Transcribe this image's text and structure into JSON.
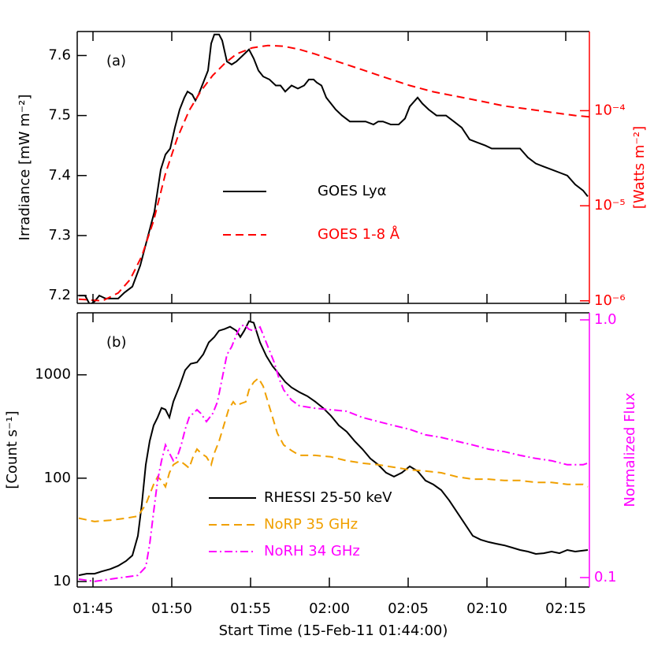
{
  "chart_data": [
    {
      "type": "line",
      "annotation": "(a)",
      "ylabel": "Irradiance [mW m⁻²]",
      "y2label": "[Watts m⁻²]",
      "xlim": [
        0,
        32.5
      ],
      "ylim": [
        7.187,
        7.64
      ],
      "yticks": [
        7.2,
        7.3,
        7.4,
        7.5,
        7.6
      ],
      "y2lim": [
        9.4e-07,
        0.00068
      ],
      "y2log": true,
      "y2color": "#ff0000",
      "y2ticks": [
        {
          "value": 1e-06,
          "label": "10⁻⁶"
        },
        {
          "value": 1e-05,
          "label": "10⁻⁵"
        },
        {
          "value": 0.0001,
          "label": "10⁻⁴"
        }
      ],
      "series": [
        {
          "name": "GOES Lyα",
          "color": "#000000",
          "dash": "solid",
          "x": [
            0.1,
            0.5,
            0.8,
            1.1,
            1.4,
            1.8,
            2.2,
            2.6,
            3.0,
            3.5,
            4.0,
            4.5,
            4.9,
            5.3,
            5.6,
            5.9,
            6.2,
            6.5,
            6.8,
            7.0,
            7.3,
            7.5,
            7.7,
            8.0,
            8.3,
            8.5,
            8.7,
            9.0,
            9.2,
            9.5,
            9.8,
            10.1,
            10.5,
            10.9,
            11.2,
            11.5,
            11.8,
            12.2,
            12.6,
            12.9,
            13.2,
            13.6,
            14.0,
            14.4,
            14.7,
            15.0,
            15.2,
            15.5,
            15.8,
            16.1,
            16.4,
            16.8,
            17.3,
            17.8,
            18.3,
            18.8,
            19.1,
            19.4,
            19.9,
            20.4,
            20.8,
            21.1,
            21.6,
            21.9,
            22.3,
            22.8,
            23.4,
            23.9,
            24.4,
            24.9,
            25.4,
            25.9,
            26.3,
            26.9,
            27.5,
            28.1,
            28.6,
            29.1,
            29.6,
            30.1,
            30.6,
            31.1,
            31.6,
            32.1,
            32.4
          ],
          "values": [
            7.2,
            7.2,
            7.185,
            7.19,
            7.2,
            7.195,
            7.195,
            7.195,
            7.205,
            7.215,
            7.25,
            7.3,
            7.34,
            7.41,
            7.435,
            7.445,
            7.48,
            7.51,
            7.53,
            7.54,
            7.535,
            7.525,
            7.535,
            7.555,
            7.575,
            7.62,
            7.635,
            7.635,
            7.625,
            7.59,
            7.585,
            7.59,
            7.6,
            7.61,
            7.595,
            7.575,
            7.565,
            7.56,
            7.55,
            7.55,
            7.54,
            7.55,
            7.545,
            7.55,
            7.56,
            7.56,
            7.555,
            7.55,
            7.53,
            7.52,
            7.51,
            7.5,
            7.49,
            7.49,
            7.49,
            7.485,
            7.49,
            7.49,
            7.485,
            7.485,
            7.495,
            7.515,
            7.53,
            7.52,
            7.51,
            7.5,
            7.5,
            7.49,
            7.48,
            7.46,
            7.455,
            7.45,
            7.445,
            7.445,
            7.445,
            7.445,
            7.43,
            7.42,
            7.415,
            7.41,
            7.405,
            7.4,
            7.385,
            7.375,
            7.365
          ]
        },
        {
          "name": "GOES 1-8 Å",
          "color": "#ff0000",
          "dash": "dashed",
          "axis": "y2",
          "x": [
            0.1,
            1.6,
            2.6,
            3.35,
            4.1,
            4.85,
            5.6,
            6.35,
            7.1,
            7.85,
            8.6,
            9.35,
            10.1,
            11.1,
            12.1,
            13.1,
            14.1,
            15.1,
            16.6,
            18.1,
            19.6,
            21.1,
            22.6,
            24.1,
            25.6,
            27.1,
            28.6,
            30.1,
            31.6,
            32.5
          ],
          "values": [
            1.04e-06,
            1e-06,
            1.21e-06,
            1.67e-06,
            2.96e-06,
            6.97e-06,
            2.18e-05,
            5.14e-05,
            0.0001,
            0.000161,
            0.000235,
            0.000313,
            0.000394,
            0.000458,
            0.000485,
            0.000476,
            0.000441,
            0.000394,
            0.000325,
            0.000269,
            0.000222,
            0.000184,
            0.000158,
            0.000141,
            0.000126,
            0.000112,
            0.000104,
            9.6e-05,
            8.9e-05,
            8.6e-05
          ]
        }
      ]
    },
    {
      "type": "line",
      "annotation": "(b)",
      "ylabel": "[Count s⁻¹]",
      "y2label": "Normalized Flux",
      "xlabel": "Start Time (15-Feb-11 01:44:00)",
      "xlim": [
        0,
        32.5
      ],
      "xticks": [
        {
          "value": 1,
          "label": "01:45"
        },
        {
          "value": 6,
          "label": "01:50"
        },
        {
          "value": 11,
          "label": "01:55"
        },
        {
          "value": 16,
          "label": "02:00"
        },
        {
          "value": 21,
          "label": "02:05"
        },
        {
          "value": 26,
          "label": "02:10"
        },
        {
          "value": 31,
          "label": "02:15"
        }
      ],
      "ylim": [
        8.85,
        3980
      ],
      "ylog": true,
      "yticks": [
        10,
        100,
        1000
      ],
      "y2lim": [
        0.0919,
        1.065
      ],
      "y2log": true,
      "y2color": "#ff00ff",
      "y2ticks": [
        0.1,
        {
          "value": 1,
          "label": "1.0"
        }
      ],
      "series": [
        {
          "name": "RHESSI 25-50 keV",
          "color": "#000000",
          "dash": "solid",
          "x": [
            0.1,
            0.6,
            1.1,
            1.6,
            2.1,
            2.6,
            3.1,
            3.5,
            3.85,
            4.1,
            4.35,
            4.6,
            4.85,
            5.1,
            5.35,
            5.6,
            5.85,
            6.1,
            6.5,
            6.85,
            7.2,
            7.6,
            8.0,
            8.35,
            8.7,
            9.0,
            9.35,
            9.7,
            10.1,
            10.35,
            10.6,
            10.9,
            11.2,
            11.6,
            12.0,
            12.4,
            12.8,
            13.2,
            13.6,
            14.1,
            14.6,
            15.1,
            15.6,
            16.1,
            16.6,
            17.1,
            17.6,
            18.1,
            18.6,
            19.1,
            19.6,
            20.1,
            20.6,
            21.1,
            21.6,
            22.1,
            22.6,
            23.1,
            23.6,
            24.1,
            24.6,
            25.1,
            25.6,
            26.1,
            26.6,
            27.1,
            27.6,
            28.1,
            28.6,
            29.1,
            29.6,
            30.1,
            30.6,
            31.1,
            31.6,
            32.4
          ],
          "values": [
            11.5,
            11.9,
            11.9,
            12.6,
            13.2,
            14.2,
            15.8,
            17.9,
            27.7,
            56,
            135,
            229,
            324,
            387,
            478,
            461,
            387,
            550,
            782,
            1110,
            1280,
            1320,
            1580,
            2060,
            2320,
            2670,
            2770,
            2920,
            2670,
            2320,
            2670,
            3300,
            3190,
            2060,
            1520,
            1210,
            1020,
            853,
            755,
            679,
            622,
            550,
            478,
            401,
            324,
            282,
            229,
            191,
            155,
            135,
            113,
            103.5,
            113,
            130,
            117,
            94.8,
            86.9,
            76.7,
            61.1,
            47,
            36.1,
            27.7,
            25.4,
            24.1,
            23.2,
            22.4,
            21.3,
            20.2,
            19.5,
            18.5,
            18.8,
            19.5,
            18.8,
            20.2,
            19.5,
            20.2
          ]
        },
        {
          "name": "NoRP 35 GHz",
          "color": "#f0a000",
          "dash": "dashed",
          "axis": "y2",
          "x": [
            0.1,
            1.1,
            2.1,
            3.1,
            3.85,
            4.35,
            4.85,
            5.1,
            5.35,
            5.6,
            5.85,
            6.1,
            6.5,
            6.85,
            7.1,
            7.35,
            7.6,
            7.85,
            8.2,
            8.5,
            8.7,
            9.0,
            9.3,
            9.6,
            9.9,
            10.1,
            10.4,
            10.7,
            10.9,
            11.2,
            11.5,
            11.8,
            12.1,
            12.4,
            12.7,
            13.1,
            13.6,
            14.1,
            15.1,
            16.1,
            17.1,
            18.1,
            19.1,
            20.1,
            21.1,
            22.1,
            23.1,
            24.1,
            25.1,
            26.1,
            27.1,
            28.1,
            29.1,
            30.1,
            31.1,
            32.1,
            32.4
          ],
          "values": [
            0.17,
            0.165,
            0.167,
            0.17,
            0.173,
            0.192,
            0.23,
            0.246,
            0.238,
            0.225,
            0.255,
            0.274,
            0.284,
            0.274,
            0.266,
            0.294,
            0.315,
            0.304,
            0.294,
            0.274,
            0.304,
            0.338,
            0.389,
            0.448,
            0.481,
            0.464,
            0.474,
            0.481,
            0.535,
            0.573,
            0.594,
            0.553,
            0.481,
            0.418,
            0.363,
            0.327,
            0.311,
            0.298,
            0.298,
            0.294,
            0.284,
            0.278,
            0.274,
            0.268,
            0.262,
            0.259,
            0.255,
            0.246,
            0.241,
            0.241,
            0.238,
            0.238,
            0.234,
            0.234,
            0.23,
            0.23,
            0.225
          ]
        },
        {
          "name": "NoRH 34 GHz",
          "color": "#ff00ff",
          "dash": "dash-dot",
          "axis": "y2",
          "x": [
            0.1,
            1.1,
            2.1,
            3.1,
            3.85,
            4.35,
            4.6,
            4.85,
            5.1,
            5.35,
            5.6,
            5.85,
            6.1,
            6.35,
            6.6,
            6.85,
            7.1,
            7.35,
            7.6,
            7.85,
            8.2,
            8.6,
            8.9,
            9.2,
            9.5,
            9.8,
            10.1,
            10.35,
            10.6,
            10.9,
            11.2,
            11.6,
            11.9,
            12.2,
            12.5,
            12.8,
            13.1,
            13.6,
            14.1,
            15.1,
            16.1,
            17.1,
            18.1,
            19.1,
            20.1,
            21.1,
            22.1,
            23.1,
            24.1,
            25.1,
            26.1,
            27.1,
            28.1,
            29.1,
            30.1,
            31.1,
            32.1,
            32.4
          ],
          "values": [
            0.0986,
            0.0966,
            0.0986,
            0.1006,
            0.102,
            0.11,
            0.135,
            0.18,
            0.238,
            0.284,
            0.327,
            0.304,
            0.284,
            0.294,
            0.327,
            0.376,
            0.418,
            0.433,
            0.448,
            0.433,
            0.403,
            0.433,
            0.481,
            0.594,
            0.733,
            0.787,
            0.875,
            0.938,
            0.959,
            0.919,
            0.906,
            0.938,
            0.845,
            0.76,
            0.684,
            0.594,
            0.535,
            0.488,
            0.464,
            0.454,
            0.448,
            0.442,
            0.418,
            0.403,
            0.389,
            0.376,
            0.358,
            0.35,
            0.338,
            0.327,
            0.315,
            0.308,
            0.298,
            0.29,
            0.284,
            0.274,
            0.274,
            0.278
          ]
        }
      ]
    }
  ]
}
